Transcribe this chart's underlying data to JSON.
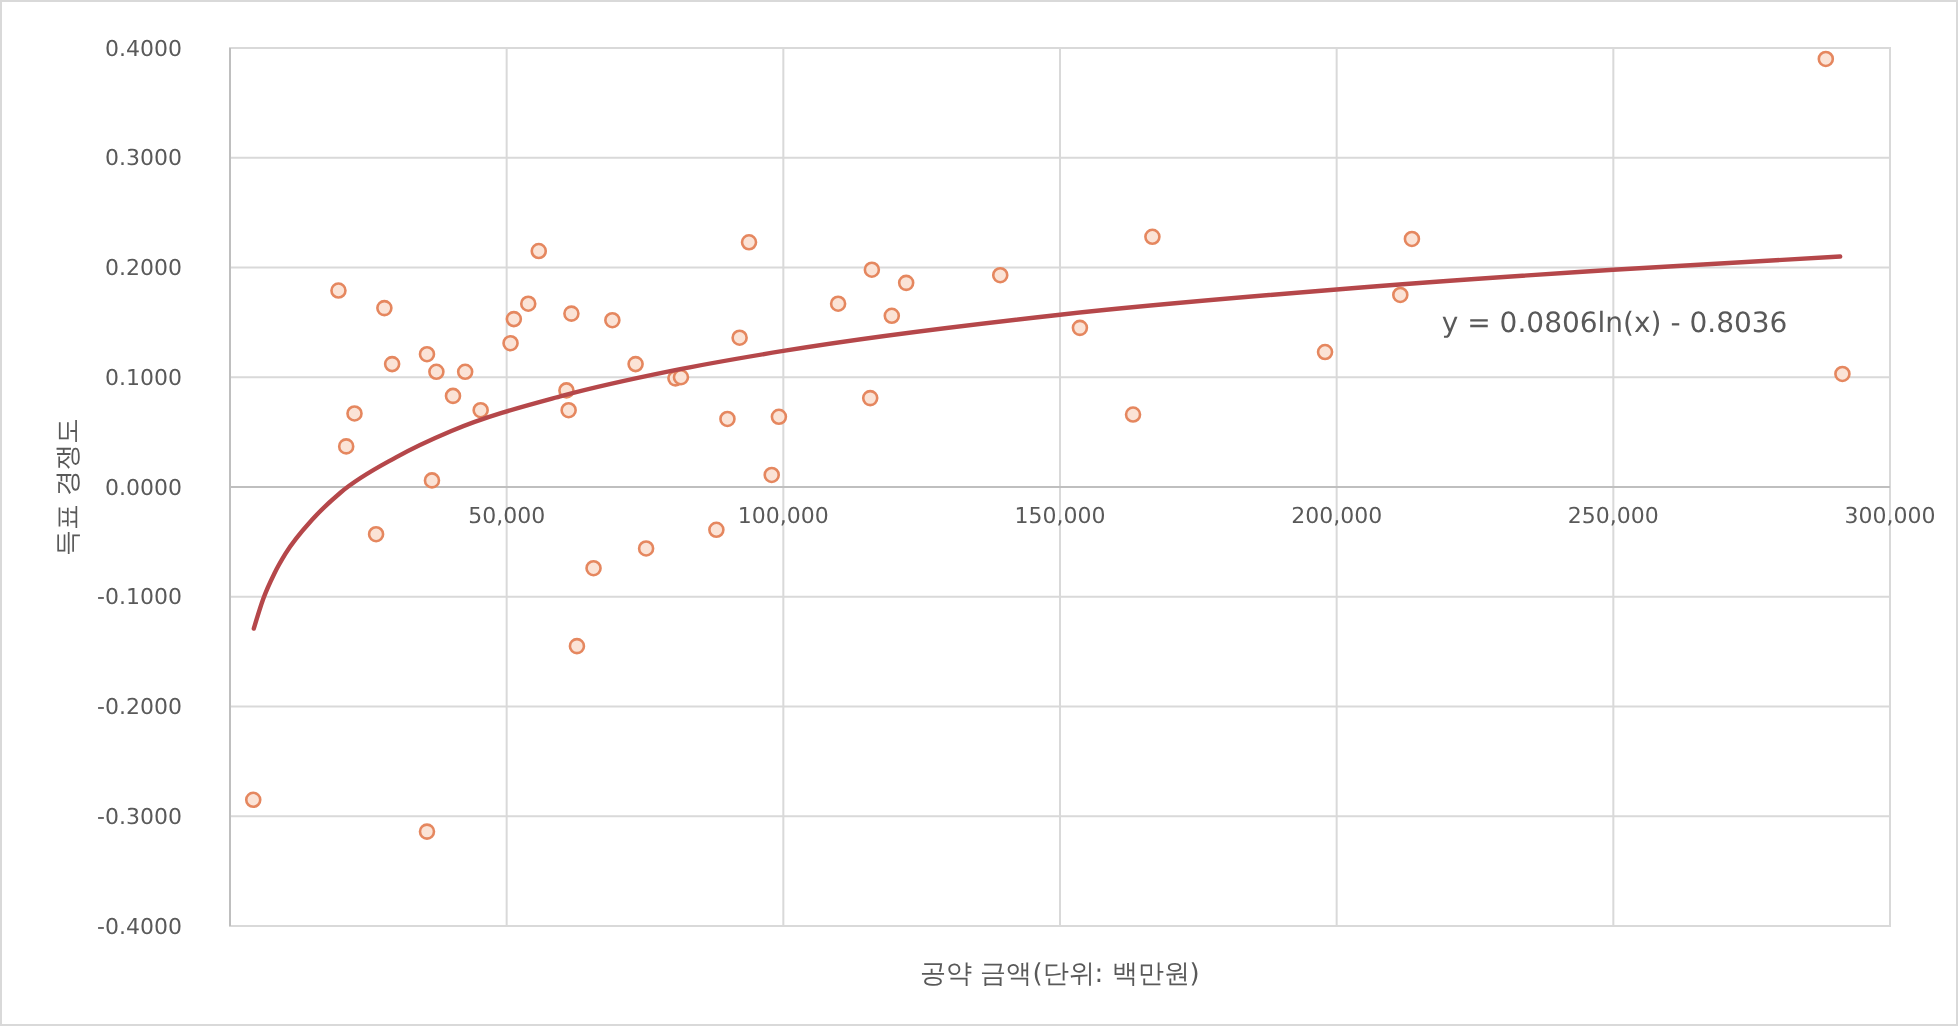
{
  "chart_data": {
    "type": "scatter",
    "xlabel": "공약 금액(단위: 백만원)",
    "ylabel": "득표 경쟁도",
    "xlim": [
      0,
      300000
    ],
    "xticks": [
      {
        "value": 50000,
        "label": "50,000"
      },
      {
        "value": 100000,
        "label": "100,000"
      },
      {
        "value": 150000,
        "label": "150,000"
      },
      {
        "value": 200000,
        "label": "200,000"
      },
      {
        "value": 250000,
        "label": "250,000"
      },
      {
        "value": 300000,
        "label": "300,000"
      }
    ],
    "ylim": [
      -0.4,
      0.4
    ],
    "yticks": [
      {
        "value": -0.4,
        "label": "-0.4000"
      },
      {
        "value": -0.3,
        "label": "-0.3000"
      },
      {
        "value": -0.2,
        "label": "-0.2000"
      },
      {
        "value": -0.1,
        "label": "-0.1000"
      },
      {
        "value": 0,
        "label": "0.0000"
      },
      {
        "value": 0.1,
        "label": "0.1000"
      },
      {
        "value": 0.2,
        "label": "0.2000"
      },
      {
        "value": 0.3,
        "label": "0.3000"
      },
      {
        "value": 0.4,
        "label": "0.4000"
      }
    ],
    "grid": true,
    "marker": "circle",
    "series": [
      {
        "type": "scatter",
        "color": "#e5875f",
        "x": [
          4200,
          35600,
          19600,
          27900,
          29300,
          22500,
          21000,
          35600,
          37300,
          42500,
          40300,
          45300,
          36500,
          26400,
          55800,
          53900,
          51300,
          50700,
          61700,
          69100,
          73300,
          60800,
          61200,
          80500,
          81500,
          65700,
          75200,
          62700,
          93800,
          92100,
          89900,
          87900,
          99200,
          97900,
          109900,
          116000,
          122200,
          119600,
          115700,
          139200,
          153600,
          166700,
          163200,
          288400,
          291400,
          213600,
          211500,
          197900
        ],
        "values": [
          -0.285,
          -0.314,
          0.179,
          0.163,
          0.112,
          0.067,
          0.037,
          0.121,
          0.105,
          0.105,
          0.083,
          0.07,
          0.006,
          -0.043,
          0.215,
          0.167,
          0.153,
          0.131,
          0.158,
          0.152,
          0.112,
          0.088,
          0.07,
          0.099,
          0.1,
          -0.074,
          -0.056,
          -0.145,
          0.223,
          0.136,
          0.062,
          -0.039,
          0.064,
          0.011,
          0.167,
          0.198,
          0.186,
          0.156,
          0.081,
          0.193,
          0.145,
          0.228,
          0.066,
          0.39,
          0.103,
          0.226,
          0.175,
          0.123
        ]
      },
      {
        "type": "line",
        "color": "#b5474a",
        "marker": "none",
        "line_style": "solid",
        "x": [
          4300,
          6000,
          8000,
          10000,
          15000,
          20000,
          30000,
          40000,
          60000,
          80000,
          100000,
          150000,
          200000,
          250000,
          291000
        ],
        "values": [
          -0.129,
          -0.102,
          -0.079,
          -0.061,
          -0.029,
          -0.005,
          0.027,
          0.051,
          0.083,
          0.106,
          0.124,
          0.157,
          0.18,
          0.198,
          0.21
        ]
      }
    ],
    "annotations": [
      "y = 0.0806ln(x) - 0.8036"
    ]
  }
}
